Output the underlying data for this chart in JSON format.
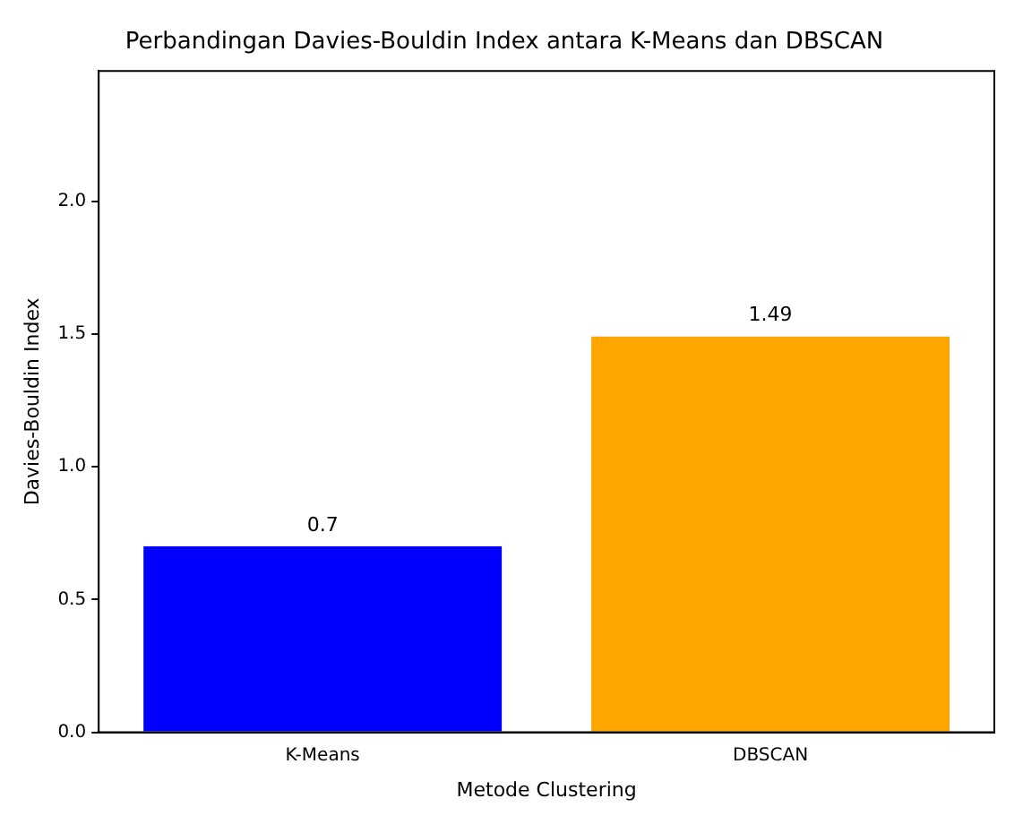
{
  "chart_data": {
    "type": "bar",
    "title": "Perbandingan Davies-Bouldin Index antara K-Means dan DBSCAN",
    "xlabel": "Metode Clustering",
    "ylabel": "Davies-Bouldin Index",
    "categories": [
      "K-Means",
      "DBSCAN"
    ],
    "values": [
      0.7,
      1.49
    ],
    "colors": [
      "#0000ff",
      "#ffa500"
    ],
    "ylim": [
      0,
      2.49
    ],
    "yticks": [
      {
        "value": 0,
        "label": "0.0"
      },
      0.5,
      {
        "value": 1,
        "label": "1.0"
      },
      1.5,
      {
        "value": 2,
        "label": "2.0"
      }
    ],
    "data_labels": true,
    "grid": false,
    "legend": false
  }
}
